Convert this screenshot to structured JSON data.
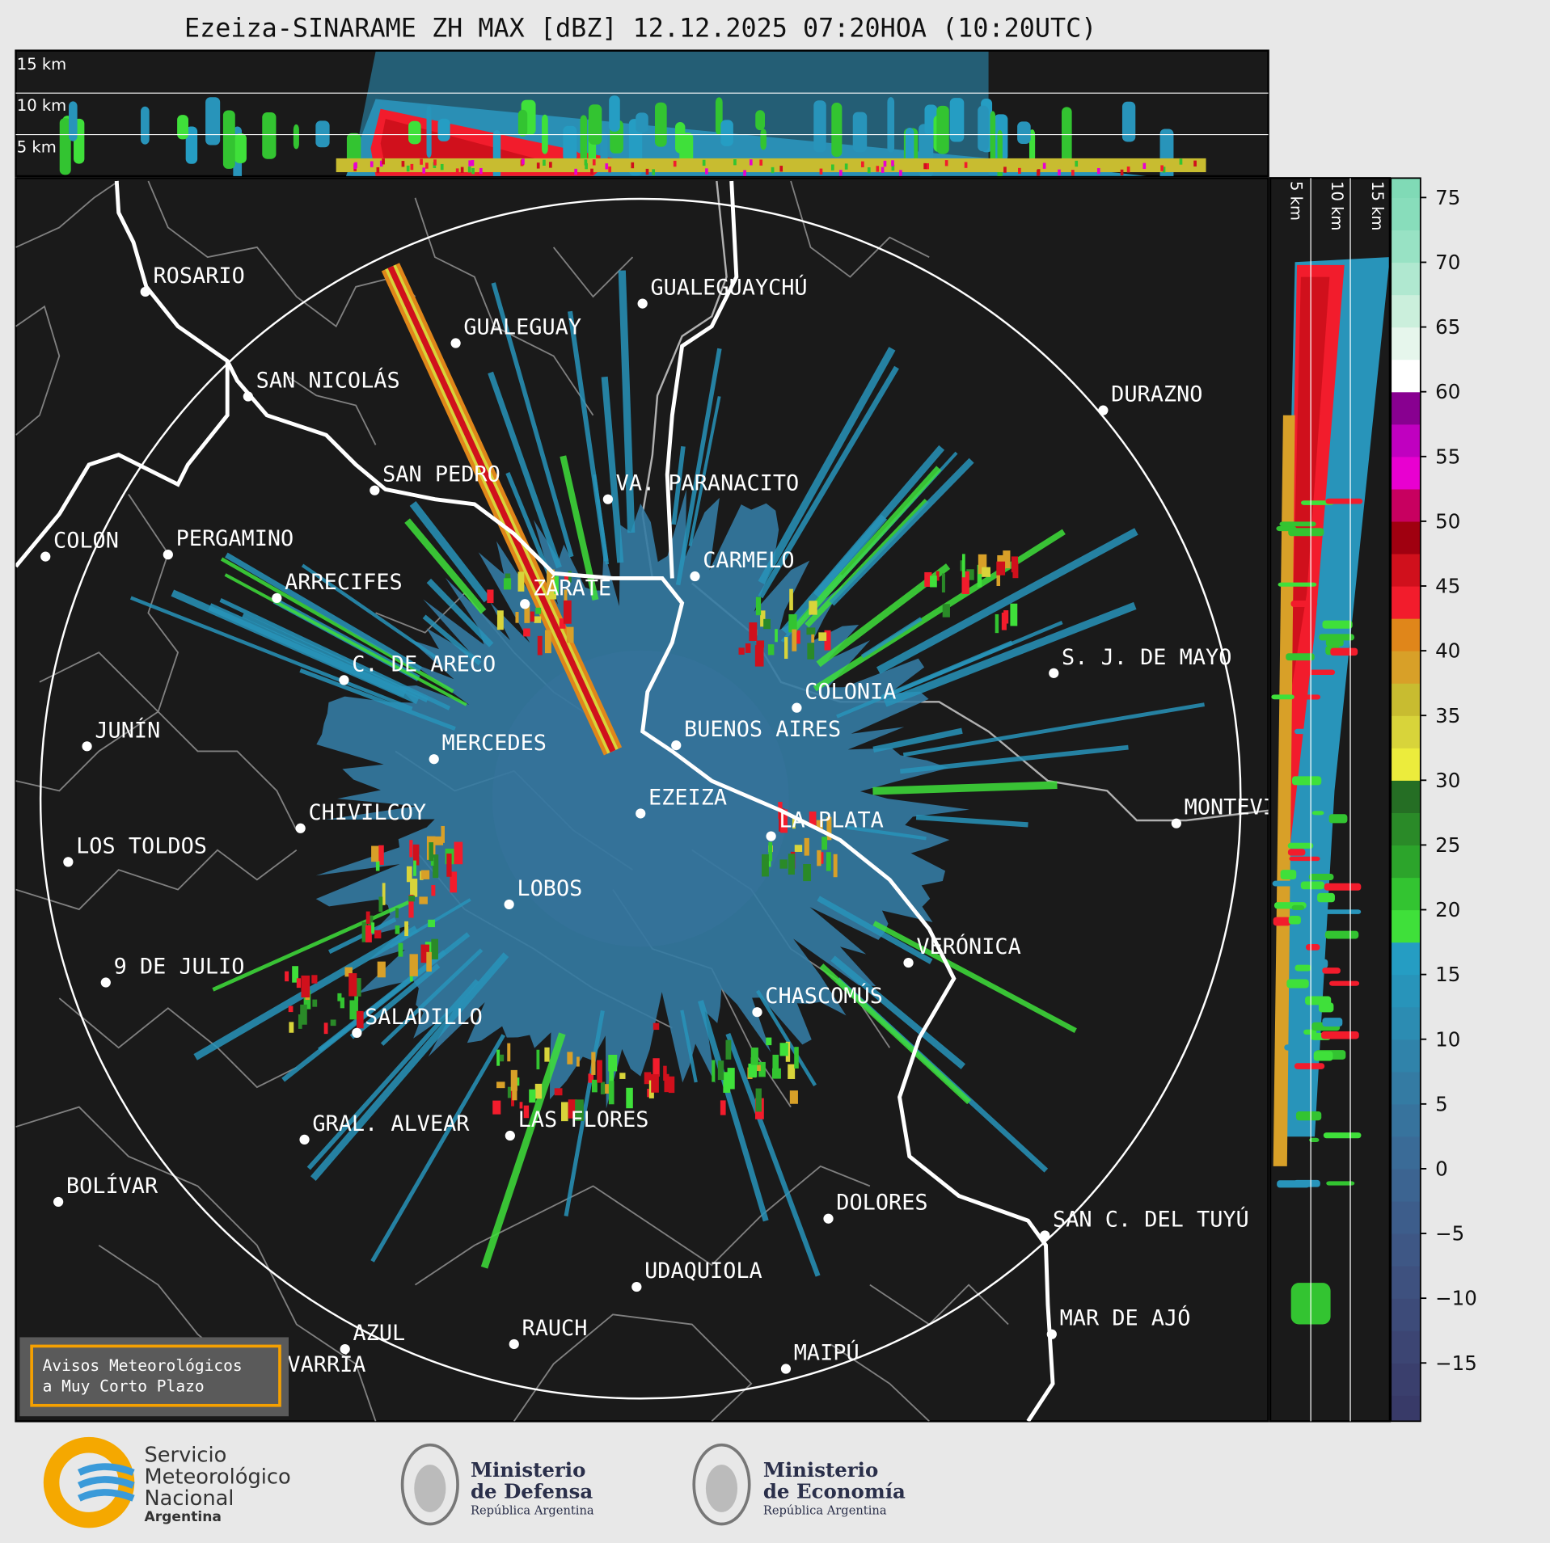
{
  "title": "Ezeiza-SINARAME ZH MAX [dBZ] 12.12.2025 07:20HOA (10:20UTC)",
  "height_labels": {
    "top": [
      "15 km",
      "10 km",
      "5 km"
    ],
    "side": [
      "5 km",
      "10 km",
      "15 km"
    ]
  },
  "cities": [
    "ROSARIO",
    "GUALEGUAYCHÚ",
    "GUALEGUAY",
    "SAN NICOLÁS",
    "DURAZNO",
    "SAN PEDRO",
    "VA. PARANACITO",
    "COLON",
    "PERGAMINO",
    "CARMELO",
    "ARRECIFES",
    "ZÁRATE",
    "C. DE ARECO",
    "S. J. DE MAYO",
    "COLONIA",
    "BUENOS AIRES",
    "JUNÍN",
    "MERCEDES",
    "EZEIZA",
    "MONTEVIDEO",
    "CHIVILCOY",
    "LA PLATA",
    "LOS TOLDOS",
    "LOBOS",
    "VERÓNICA",
    "9 DE JULIO",
    "CHASCOMÚS",
    "SALADILLO",
    "GRAL. ALVEAR",
    "LAS FLORES",
    "DOLORES",
    "BOLÍVAR",
    "SAN C. DEL TUYÚ",
    "UDAQUIOLA",
    "MAR DE AJÓ",
    "RAUCH",
    "AZUL",
    "OLAVARRÍA",
    "MAIPÚ"
  ],
  "notice": [
    "Avisos Meteorológicos",
    "a Muy Corto Plazo"
  ],
  "colorbar": {
    "ylim": [
      -19.5,
      76.5
    ],
    "yticks": [
      {
        "value": -15,
        "label": "−15"
      },
      {
        "value": -10,
        "label": "−10"
      },
      {
        "value": -5,
        "label": "−5"
      },
      0,
      5,
      10,
      15,
      20,
      25,
      30,
      35,
      40,
      45,
      50,
      55,
      60,
      65,
      70,
      75
    ],
    "color_start": -20,
    "color_step": 2.5,
    "colors": [
      "#383a68",
      "#3a3f6d",
      "#3c4573",
      "#3d4b79",
      "#3e517f",
      "#3e5785",
      "#3d5d8b",
      "#3c6491",
      "#3a6b97",
      "#37739d",
      "#347ba3",
      "#3083aa",
      "#2c8cb2",
      "#2894ba",
      "#259dc3",
      "#3fe03a",
      "#33c431",
      "#2ca42b",
      "#2a8a28",
      "#256e24",
      "#ecec3c",
      "#d8d43a",
      "#c8bc30",
      "#d8a028",
      "#e0861a",
      "#f21c2c",
      "#d0101c",
      "#a00010",
      "#c80060",
      "#e800d0",
      "#c000c0",
      "#880090",
      "#ffffff",
      "#e6f6ec",
      "#cbefdc",
      "#b0e8d0",
      "#98e2c4",
      "#88ddbb",
      "#80dab6"
    ]
  },
  "footer": {
    "smn": [
      "Servicio",
      "Meteorológico",
      "Nacional",
      "Argentina"
    ],
    "defensa": [
      "Ministerio",
      "de Defensa",
      "República Argentina"
    ],
    "economia": [
      "Ministerio",
      "de Economía",
      "República Argentina"
    ]
  }
}
